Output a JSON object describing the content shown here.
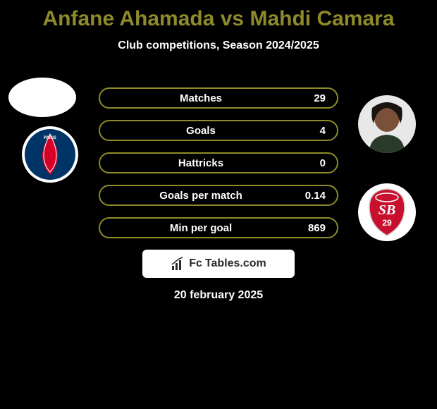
{
  "colors": {
    "background": "#000000",
    "title_color": "#8e8a2a",
    "text_color": "#ffffff",
    "bar_bg": "#000000",
    "bar_border": "#8e8a2a",
    "bar_text": "#ffffff",
    "watermark_bg": "#ffffff",
    "watermark_text": "#2a2a2a",
    "avatar_skin": "#7a5038",
    "logo1_outer": "#ffffff",
    "logo1_primary": "#003366",
    "logo1_secondary": "#d40028",
    "logo2_primary": "#c8102e",
    "logo2_secondary": "#ffffff",
    "logo2_accent": "#cccccc"
  },
  "typography": {
    "title_fontsize": 30,
    "subtitle_fontsize": 16,
    "bar_label_fontsize": 15,
    "watermark_fontsize": 16,
    "date_fontsize": 16
  },
  "title": "Anfane Ahamada vs Mahdi Camara",
  "subtitle": "Club competitions, Season 2024/2025",
  "bar_style": {
    "height": 30,
    "border_radius": 15,
    "border_width": 2,
    "gap": 16
  },
  "stats": [
    {
      "label": "Matches",
      "right_value": "29"
    },
    {
      "label": "Goals",
      "right_value": "4"
    },
    {
      "label": "Hattricks",
      "right_value": "0"
    },
    {
      "label": "Goals per match",
      "right_value": "0.14"
    },
    {
      "label": "Min per goal",
      "right_value": "869"
    }
  ],
  "watermark": {
    "prefix": "Fc",
    "text": "Tables.com"
  },
  "date": "20 february 2025",
  "logos": {
    "left": {
      "text": "PARIS",
      "type": "psg-style"
    },
    "right": {
      "text": "SB",
      "sub": "29",
      "type": "shield"
    }
  }
}
